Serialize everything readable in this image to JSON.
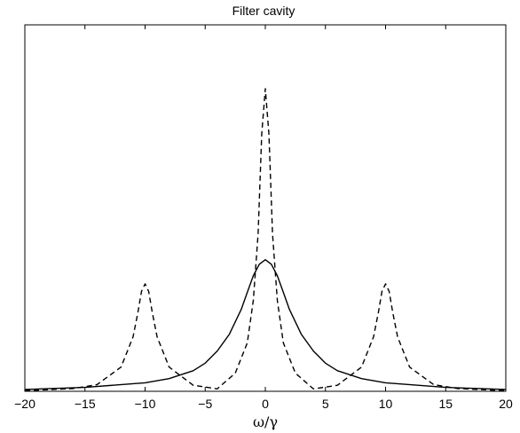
{
  "chart_data": {
    "type": "line",
    "title": "Filter cavity",
    "xlabel": "ω/γ",
    "ylabel": "",
    "xlim": [
      -20,
      20
    ],
    "ylim": [
      0,
      1.0
    ],
    "x_ticks": [
      -20,
      -15,
      -10,
      -5,
      0,
      5,
      10,
      15,
      20
    ],
    "x_tick_labels": [
      "−20",
      "−15",
      "−10",
      "−5",
      "0",
      "5",
      "10",
      "15",
      "20"
    ],
    "y_ticks": [],
    "grid": false,
    "legend": "none",
    "series": [
      {
        "style": "solid",
        "x": [
          -20,
          -15,
          -10,
          -8,
          -6,
          -5,
          -4,
          -3,
          -2,
          -1.5,
          -1,
          -0.5,
          0,
          0.5,
          1,
          1.5,
          2,
          3,
          4,
          5,
          6,
          8,
          10,
          15,
          20
        ],
        "y": [
          0.006,
          0.013,
          0.028,
          0.042,
          0.068,
          0.093,
          0.133,
          0.188,
          0.271,
          0.327,
          0.382,
          0.42,
          0.435,
          0.42,
          0.382,
          0.327,
          0.271,
          0.188,
          0.133,
          0.093,
          0.068,
          0.042,
          0.028,
          0.013,
          0.006
        ]
      },
      {
        "style": "dashed",
        "x": [
          -20,
          -16,
          -14,
          -12,
          -11,
          -10.6,
          -10.3,
          -10,
          -9.7,
          -9.4,
          -9,
          -8,
          -6,
          -4,
          -2.5,
          -1.5,
          -1,
          -0.6,
          -0.3,
          0,
          0.3,
          0.6,
          1,
          1.5,
          2.5,
          4,
          6,
          8,
          9,
          9.4,
          9.7,
          10,
          10.3,
          10.6,
          11,
          12,
          14,
          16,
          20
        ],
        "y": [
          0.002,
          0.009,
          0.022,
          0.08,
          0.18,
          0.26,
          0.33,
          0.355,
          0.33,
          0.26,
          0.18,
          0.08,
          0.02,
          0.008,
          0.06,
          0.16,
          0.3,
          0.52,
          0.85,
          1.0,
          0.85,
          0.52,
          0.3,
          0.16,
          0.06,
          0.008,
          0.02,
          0.08,
          0.18,
          0.26,
          0.33,
          0.355,
          0.33,
          0.26,
          0.18,
          0.08,
          0.022,
          0.009,
          0.002
        ]
      }
    ]
  }
}
